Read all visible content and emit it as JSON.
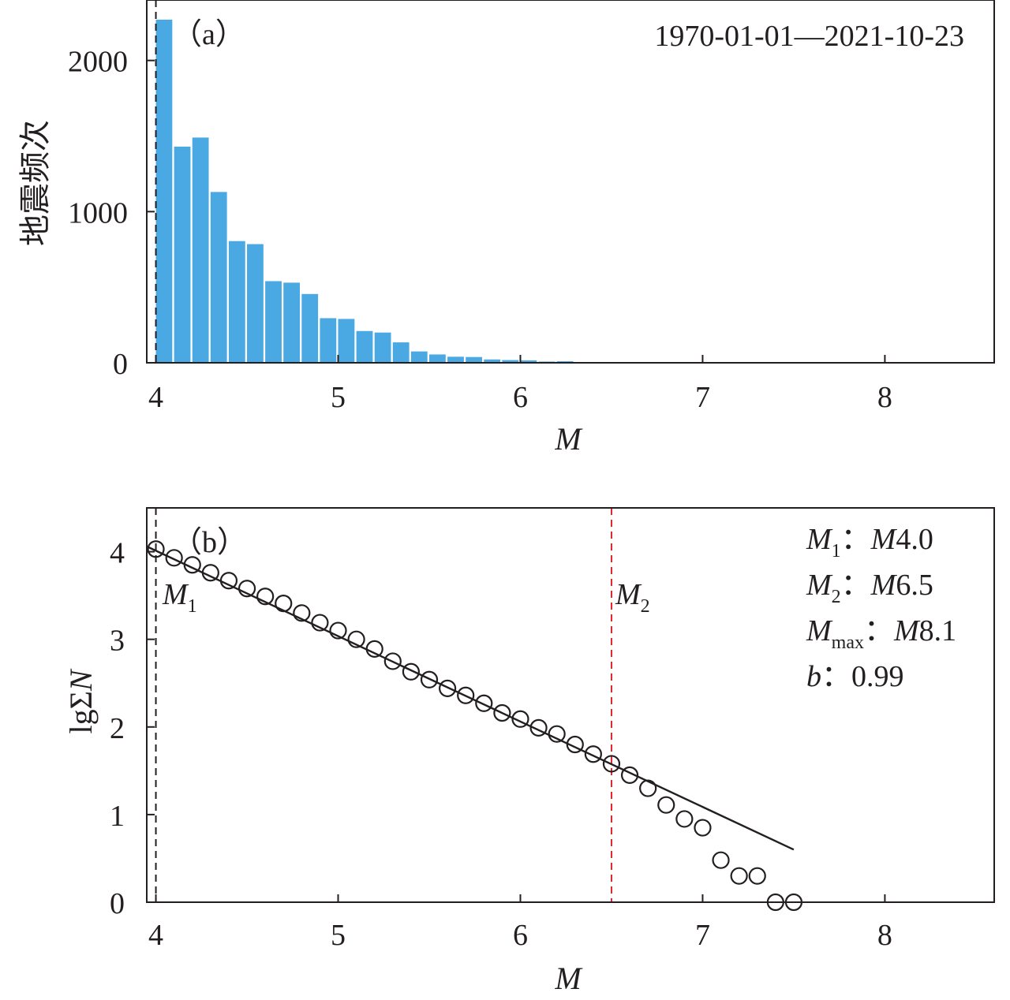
{
  "chart_data": [
    {
      "panel": "a",
      "type": "bar",
      "panel_label": "（a）",
      "date_range": "1970-01-01—2021-10-23",
      "xlabel": "M",
      "ylabel": "地震频次",
      "xlim": [
        3.95,
        8.6
      ],
      "ylim": [
        0,
        2400
      ],
      "xticks": [
        4,
        5,
        6,
        7,
        8
      ],
      "yticks": [
        0,
        1000,
        2000
      ],
      "bar_width": 0.09,
      "categories": [
        4.0,
        4.1,
        4.2,
        4.3,
        4.4,
        4.5,
        4.6,
        4.7,
        4.8,
        4.9,
        5.0,
        5.1,
        5.2,
        5.3,
        5.4,
        5.5,
        5.6,
        5.7,
        5.8,
        5.9,
        6.0,
        6.1,
        6.2,
        6.3,
        6.4,
        6.5,
        6.6,
        6.7,
        6.8,
        6.9,
        7.0,
        7.1,
        7.2,
        7.3,
        7.4,
        7.5
      ],
      "values": [
        2270,
        1430,
        1490,
        1130,
        805,
        785,
        540,
        530,
        455,
        295,
        290,
        210,
        200,
        135,
        75,
        55,
        40,
        38,
        22,
        18,
        16,
        8,
        10,
        5,
        4,
        3,
        3,
        2,
        2,
        1,
        1,
        1,
        1,
        1,
        1,
        1
      ],
      "reference_line": {
        "x": 4.0,
        "style": "dashed",
        "color": "#231f20"
      }
    },
    {
      "panel": "b",
      "type": "scatter",
      "panel_label": "（b）",
      "xlabel": "M",
      "ylabel_prefix": "lgΣ",
      "ylabel_var": "N",
      "xlim": [
        3.95,
        8.6
      ],
      "ylim": [
        0,
        4.5
      ],
      "xticks": [
        4,
        5,
        6,
        7,
        8
      ],
      "yticks": [
        0,
        1,
        2,
        3,
        4
      ],
      "points": {
        "x": [
          4.0,
          4.1,
          4.2,
          4.3,
          4.4,
          4.5,
          4.6,
          4.7,
          4.8,
          4.9,
          5.0,
          5.1,
          5.2,
          5.3,
          5.4,
          5.5,
          5.6,
          5.7,
          5.8,
          5.9,
          6.0,
          6.1,
          6.2,
          6.3,
          6.4,
          6.5,
          6.6,
          6.7,
          6.8,
          6.9,
          7.0,
          7.1,
          7.2,
          7.3,
          7.4,
          7.5
        ],
        "y": [
          4.03,
          3.93,
          3.85,
          3.76,
          3.67,
          3.58,
          3.49,
          3.41,
          3.3,
          3.19,
          3.1,
          3.0,
          2.89,
          2.75,
          2.63,
          2.54,
          2.44,
          2.36,
          2.27,
          2.16,
          2.09,
          1.99,
          1.92,
          1.8,
          1.69,
          1.58,
          1.45,
          1.3,
          1.11,
          0.95,
          0.85,
          0.48,
          0.3,
          0.3,
          0.0,
          0.0
        ]
      },
      "fit_line": {
        "x": [
          3.95,
          7.5
        ],
        "y": [
          4.06,
          0.6
        ]
      },
      "m1_line": {
        "x": 4.0,
        "label_main": "M",
        "label_sub": "1",
        "color": "#231f20",
        "style": "dashed"
      },
      "m2_line": {
        "x": 6.5,
        "label_main": "M",
        "label_sub": "2",
        "color": "#e0262e",
        "style": "dashed"
      },
      "legend": [
        {
          "var": "M",
          "sub": "1",
          "sep": "：",
          "val_it": "M",
          "val": "4.0"
        },
        {
          "var": "M",
          "sub": "2",
          "sep": "：",
          "val_it": "M",
          "val": "6.5"
        },
        {
          "var": "M",
          "sub": "max",
          "sep": "：",
          "val_it": "M",
          "val": "8.1"
        },
        {
          "var": "b",
          "sub": "",
          "sep": "：",
          "val_it": "",
          "val": "0.99"
        }
      ]
    }
  ]
}
